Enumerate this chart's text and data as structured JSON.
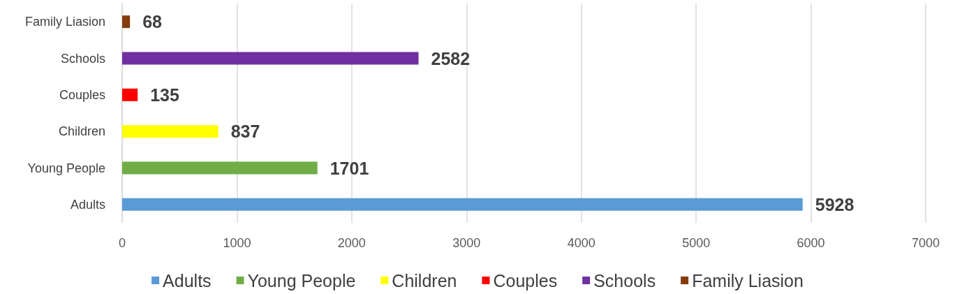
{
  "chart_data": {
    "type": "bar",
    "orientation": "horizontal",
    "stacked": true,
    "categories": [
      "Family Liasion",
      "Schools",
      "Couples",
      "Children",
      "Young People",
      "Adults"
    ],
    "series": [
      {
        "name": "Adults",
        "color": "#5b9bd5",
        "values": [
          null,
          null,
          null,
          null,
          null,
          5928
        ]
      },
      {
        "name": "Young People",
        "color": "#70ad47",
        "values": [
          null,
          null,
          null,
          null,
          1701,
          null
        ]
      },
      {
        "name": "Children",
        "color": "#ffff00",
        "values": [
          null,
          null,
          null,
          837,
          null,
          null
        ]
      },
      {
        "name": "Couples",
        "color": "#ff0000",
        "values": [
          null,
          null,
          135,
          null,
          null,
          null
        ]
      },
      {
        "name": "Schools",
        "color": "#7030a0",
        "values": [
          null,
          2582,
          null,
          null,
          null,
          null
        ]
      },
      {
        "name": "Family Liasion",
        "color": "#843c0c",
        "values": [
          68,
          null,
          null,
          null,
          null,
          null
        ]
      }
    ],
    "xlim": [
      0,
      7000
    ],
    "xticks": [
      0,
      1000,
      2000,
      3000,
      4000,
      5000,
      6000,
      7000
    ],
    "grid": "x",
    "legend": "bottom",
    "data_labels": true
  }
}
